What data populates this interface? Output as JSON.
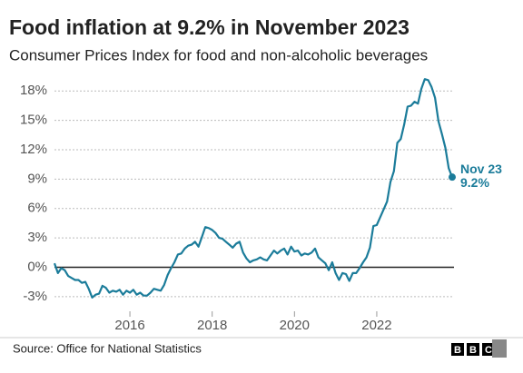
{
  "chart_data": {
    "type": "line",
    "title": "Food inflation at 9.2% in November 2023",
    "subtitle": "Consumer Prices Index for food and non-alcoholic beverages",
    "source": "Source: Office for National Statistics",
    "logo": [
      "B",
      "B",
      "C"
    ],
    "annotation": "Nov 23",
    "x": [
      2014.167,
      2014.25,
      2014.333,
      2014.417,
      2014.5,
      2014.583,
      2014.667,
      2014.75,
      2014.833,
      2014.917,
      2015,
      2015.083,
      2015.167,
      2015.25,
      2015.333,
      2015.417,
      2015.5,
      2015.583,
      2015.667,
      2015.75,
      2015.833,
      2015.917,
      2016,
      2016.083,
      2016.167,
      2016.25,
      2016.333,
      2016.417,
      2016.5,
      2016.583,
      2016.667,
      2016.75,
      2016.833,
      2016.917,
      2017,
      2017.083,
      2017.167,
      2017.25,
      2017.333,
      2017.417,
      2017.5,
      2017.583,
      2017.667,
      2017.75,
      2017.833,
      2017.917,
      2018,
      2018.083,
      2018.167,
      2018.25,
      2018.333,
      2018.417,
      2018.5,
      2018.583,
      2018.667,
      2018.75,
      2018.833,
      2018.917,
      2019,
      2019.083,
      2019.167,
      2019.25,
      2019.333,
      2019.417,
      2019.5,
      2019.583,
      2019.667,
      2019.75,
      2019.833,
      2019.917,
      2020,
      2020.083,
      2020.167,
      2020.25,
      2020.333,
      2020.417,
      2020.5,
      2020.583,
      2020.667,
      2020.75,
      2020.833,
      2020.917,
      2021,
      2021.083,
      2021.167,
      2021.25,
      2021.333,
      2021.417,
      2021.5,
      2021.583,
      2021.667,
      2021.75,
      2021.833,
      2021.917,
      2022,
      2022.083,
      2022.167,
      2022.25,
      2022.333,
      2022.417,
      2022.5,
      2022.583,
      2022.667,
      2022.75,
      2022.833,
      2022.917,
      2023,
      2023.083,
      2023.167,
      2023.25,
      2023.333,
      2023.417,
      2023.5,
      2023.583,
      2023.667,
      2023.75,
      2023.833
    ],
    "series": [
      {
        "color": "#1b7c9a",
        "values": [
          0.4,
          -0.6,
          -0.1,
          -0.3,
          -0.9,
          -1.1,
          -1.3,
          -1.3,
          -1.6,
          -1.5,
          -2.2,
          -3.1,
          -2.8,
          -2.7,
          -1.9,
          -2.1,
          -2.6,
          -2.4,
          -2.5,
          -2.3,
          -2.8,
          -2.4,
          -2.6,
          -2.3,
          -2.8,
          -2.6,
          -2.9,
          -2.9,
          -2.6,
          -2.2,
          -2.3,
          -2.4,
          -1.8,
          -0.8,
          -0.1,
          0.5,
          1.3,
          1.4,
          1.9,
          2.2,
          2.3,
          2.6,
          2.1,
          3.1,
          4.1,
          4.0,
          3.8,
          3.5,
          3.0,
          2.9,
          2.6,
          2.3,
          2.0,
          2.4,
          2.6,
          1.5,
          0.9,
          0.5,
          0.7,
          0.8,
          1.0,
          0.8,
          0.7,
          1.2,
          1.7,
          1.4,
          1.7,
          1.9,
          1.3,
          2.1,
          1.6,
          1.7,
          1.2,
          1.4,
          1.3,
          1.5,
          1.9,
          1.0,
          0.7,
          0.4,
          -0.3,
          0.5,
          -0.6,
          -1.3,
          -0.6,
          -0.7,
          -1.4,
          -0.6,
          -0.6,
          -0.1,
          0.5,
          1.0,
          2.0,
          4.2,
          4.3,
          5.1,
          5.9,
          6.7,
          8.7,
          9.8,
          12.7,
          13.1,
          14.6,
          16.4,
          16.5,
          16.9,
          16.7,
          18.2,
          19.2,
          19.1,
          18.4,
          17.3,
          14.9,
          13.6,
          12.2,
          10.1,
          9.2
        ],
        "value_labels": [
          null,
          null,
          null,
          null,
          null,
          null,
          null,
          null,
          null,
          null,
          null,
          null,
          null,
          null,
          null,
          null,
          null,
          null,
          null,
          null,
          null,
          null,
          null,
          null,
          null,
          null,
          null,
          null,
          null,
          null,
          null,
          null,
          null,
          null,
          null,
          null,
          null,
          null,
          null,
          null,
          null,
          null,
          null,
          null,
          null,
          null,
          null,
          null,
          null,
          null,
          null,
          null,
          null,
          null,
          null,
          null,
          null,
          null,
          null,
          null,
          null,
          null,
          null,
          null,
          null,
          null,
          null,
          null,
          null,
          null,
          null,
          null,
          null,
          null,
          null,
          null,
          null,
          null,
          null,
          null,
          null,
          null,
          null,
          null,
          null,
          null,
          null,
          null,
          null,
          null,
          null,
          null,
          null,
          null,
          null,
          null,
          null,
          null,
          null,
          null,
          null,
          null,
          null,
          null,
          null,
          null,
          null,
          null,
          null,
          null,
          null,
          null,
          null,
          null,
          null,
          null,
          "9.2%"
        ]
      }
    ],
    "xlim": [
      2014.167,
      2023.833
    ],
    "xticks": [
      2016,
      2018,
      2020,
      2022
    ],
    "ylim": [
      -4.5,
      19.5
    ],
    "yticks": [
      {
        "value": -3,
        "label": "-3%"
      },
      {
        "value": 0,
        "label": "0%"
      },
      {
        "value": 3,
        "label": "3%"
      },
      {
        "value": 6,
        "label": "6%"
      },
      {
        "value": 9,
        "label": "9%"
      },
      {
        "value": 12,
        "label": "12%"
      },
      {
        "value": 15,
        "label": "15%"
      },
      {
        "value": 18,
        "label": "18%"
      }
    ],
    "grid": true
  }
}
